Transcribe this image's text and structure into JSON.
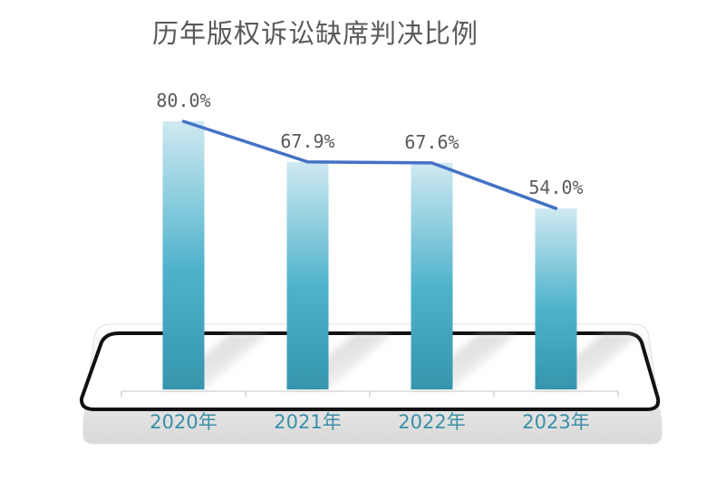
{
  "chart_data": {
    "type": "bar",
    "title": "历年版权诉讼缺席判决比例",
    "categories": [
      "2020年",
      "2021年",
      "2022年",
      "2023年"
    ],
    "values": [
      80.0,
      67.9,
      67.6,
      54.0
    ],
    "data_labels": [
      "80.0%",
      "67.9%",
      "67.6%",
      "54.0%"
    ],
    "trend_line": true,
    "colors": {
      "bar_top": "#cfe9f1",
      "bar_mid": "#4fb3cc",
      "bar_bottom": "#3596ad",
      "trend_line": "#4472c4",
      "tick_label": "#3a8fa6"
    }
  }
}
